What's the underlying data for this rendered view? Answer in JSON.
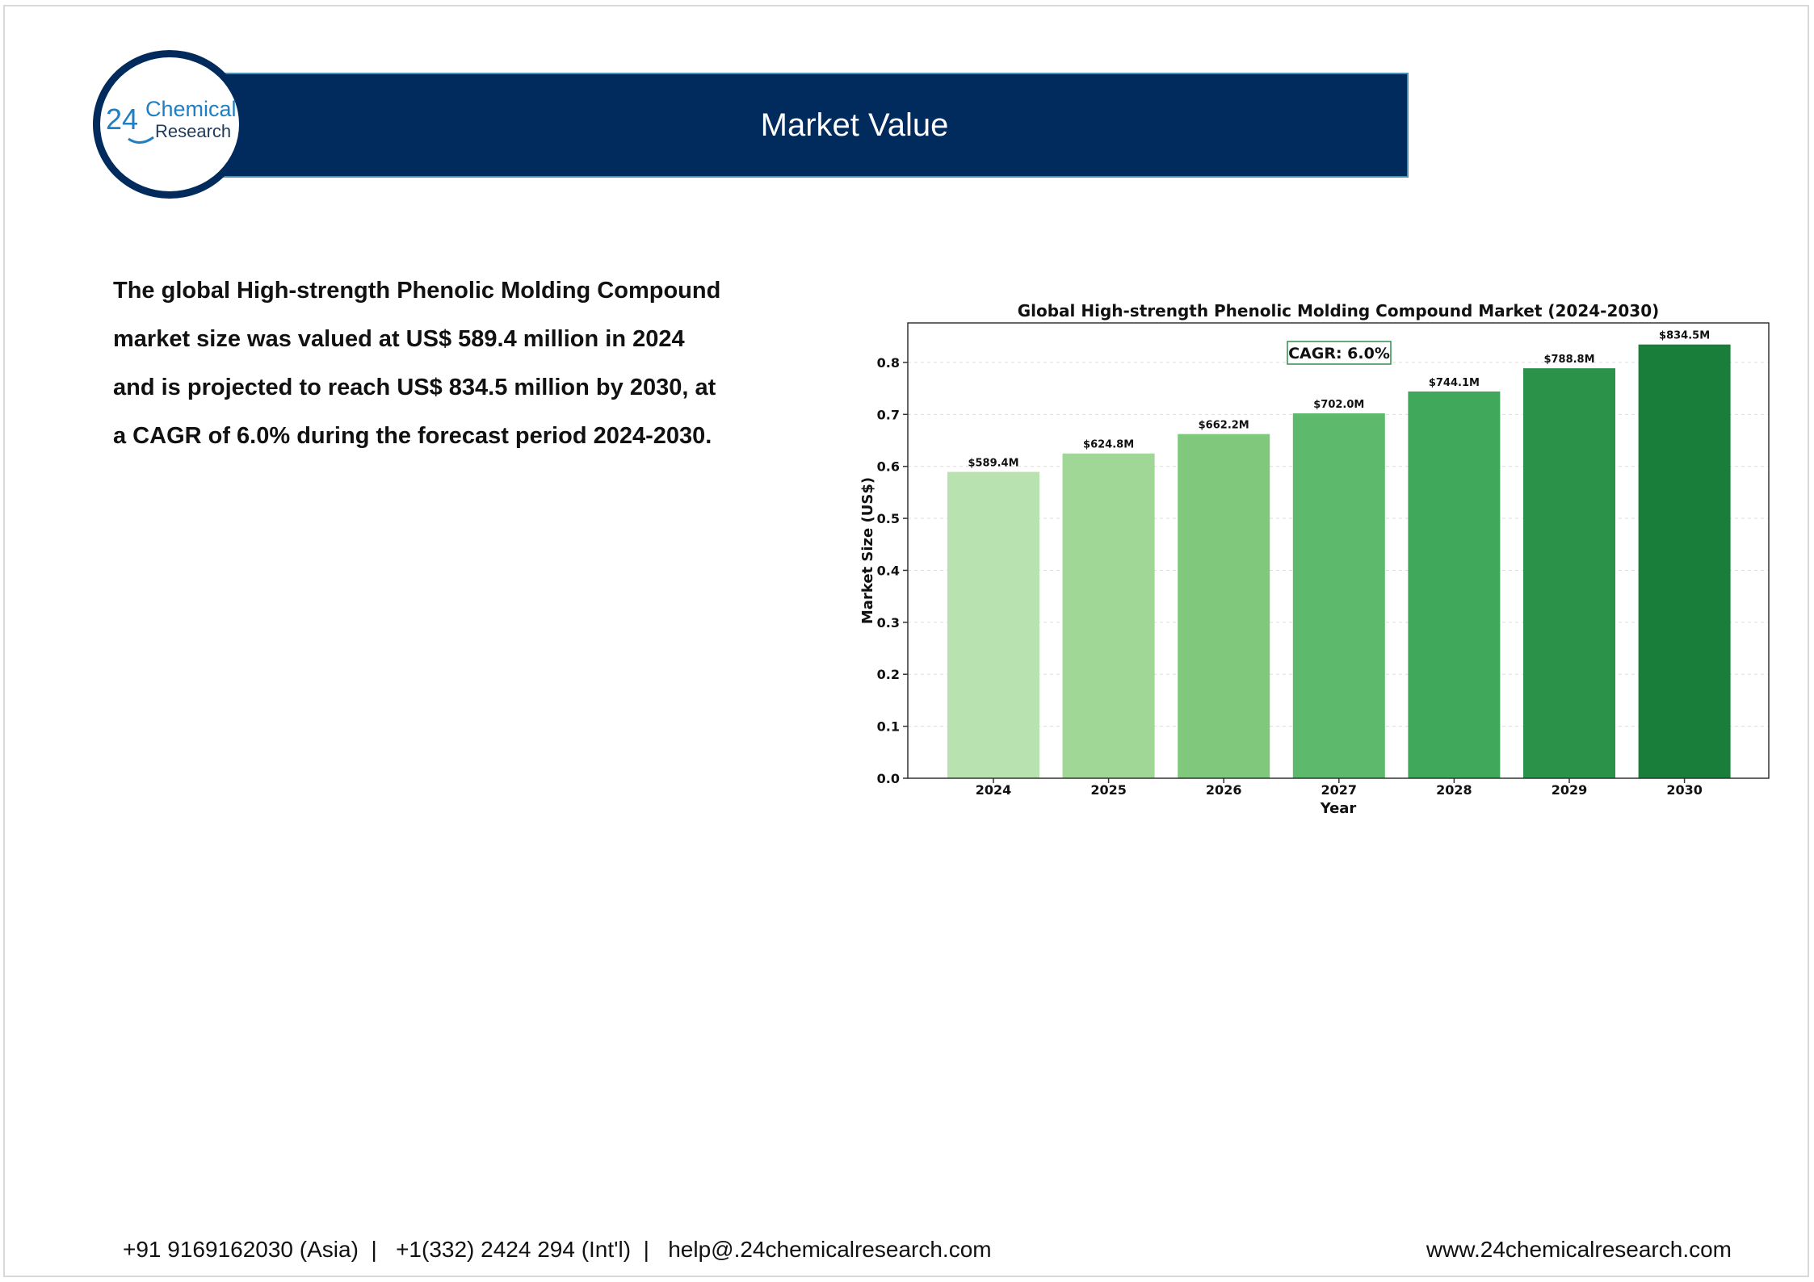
{
  "header": {
    "title": "Market Value",
    "logo": {
      "number": "24",
      "line1": "Chemical",
      "line2": "Research"
    }
  },
  "summary": {
    "text": "The global High-strength Phenolic Molding Compound market size was valued at US$ 589.4 million in 2024 and is projected to reach US$ 834.5 million by 2030, at a CAGR of 6.0% during the forecast period 2024-2030."
  },
  "chart_data": {
    "type": "bar",
    "title": "Global High-strength Phenolic Molding Compound Market (2024-2030)",
    "xlabel": "Year",
    "ylabel": "Market Size (US$)",
    "categories": [
      "2024",
      "2025",
      "2026",
      "2027",
      "2028",
      "2029",
      "2030"
    ],
    "values": [
      0.5894,
      0.6248,
      0.6622,
      0.702,
      0.7441,
      0.7888,
      0.8345
    ],
    "data_labels": [
      "$589.4M",
      "$624.8M",
      "$662.2M",
      "$702.0M",
      "$744.1M",
      "$788.8M",
      "$834.5M"
    ],
    "bar_colors": [
      "#b8e3b0",
      "#a0d696",
      "#7fc87c",
      "#5db96b",
      "#3fa85b",
      "#2b9249",
      "#1a7e3b"
    ],
    "ylim": [
      0,
      0.876
    ],
    "yticks": [
      "0.0",
      "0.1",
      "0.2",
      "0.3",
      "0.4",
      "0.5",
      "0.6",
      "0.7",
      "0.8"
    ],
    "annotation": "CAGR: 6.0%",
    "grid": true,
    "legend": "none"
  },
  "footer": {
    "contact": "+91 9169162030 (Asia)  |   +1(332) 2424 294 (Int'l)  |   help@.24chemicalresearch.com",
    "website": "www.24chemicalresearch.com"
  }
}
